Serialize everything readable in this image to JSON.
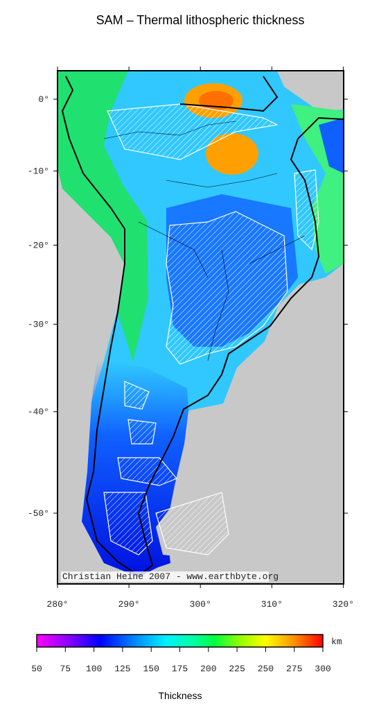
{
  "title": "SAM – Thermal lithospheric thickness",
  "map": {
    "lat_ticks": [
      {
        "value": 0,
        "label": "0°"
      },
      {
        "value": -10,
        "label": "-10°"
      },
      {
        "value": -20,
        "label": "-20°"
      },
      {
        "value": -30,
        "label": "-30°"
      },
      {
        "value": -40,
        "label": "-40°"
      },
      {
        "value": -50,
        "label": "-50°"
      }
    ],
    "lon_ticks": [
      {
        "value": 280,
        "label": "280°"
      },
      {
        "value": 290,
        "label": "290°"
      },
      {
        "value": 300,
        "label": "300°"
      },
      {
        "value": 310,
        "label": "310°"
      },
      {
        "value": 320,
        "label": "320°"
      }
    ],
    "credit": "Christian Heine 2007 - www.earthbyte.org"
  },
  "colorbar": {
    "lim": [
      50,
      300
    ],
    "ticks": [
      50,
      75,
      100,
      125,
      150,
      175,
      200,
      225,
      250,
      275,
      300
    ],
    "unit": "km",
    "label": "Thickness"
  }
}
